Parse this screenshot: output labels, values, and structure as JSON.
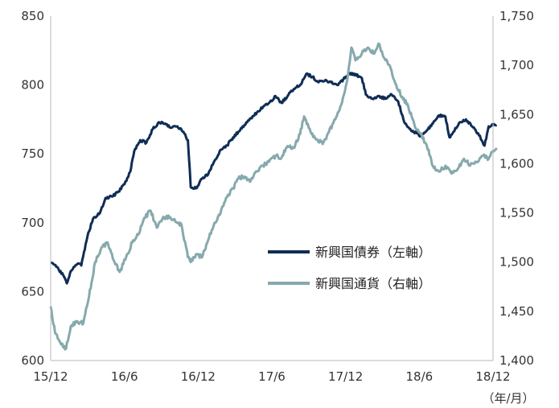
{
  "chart_data": {
    "type": "line",
    "x_ticks": [
      "15/12",
      "16/6",
      "16/12",
      "17/6",
      "17/12",
      "18/6",
      "18/12"
    ],
    "x_unit_label": "（年/月）",
    "y_left": {
      "range": [
        600,
        850
      ],
      "ticks": [
        "600",
        "650",
        "700",
        "750",
        "800",
        "850"
      ]
    },
    "y_right": {
      "range": [
        1400,
        1750
      ],
      "ticks": [
        "1,400",
        "1,450",
        "1,500",
        "1,550",
        "1,600",
        "1,650",
        "1,700",
        "1,750"
      ]
    },
    "grid": false,
    "legend_position": "center-right",
    "series": [
      {
        "name": "新興国債券（左軸）",
        "axis": "left",
        "color": "#0f2d55",
        "points": [
          [
            "2015-12-01",
            671
          ],
          [
            "2015-12-15",
            668
          ],
          [
            "2016-01-01",
            662
          ],
          [
            "2016-01-10",
            656
          ],
          [
            "2016-01-20",
            665
          ],
          [
            "2016-02-05",
            670
          ],
          [
            "2016-02-15",
            669
          ],
          [
            "2016-03-01",
            690
          ],
          [
            "2016-03-15",
            703
          ],
          [
            "2016-04-01",
            707
          ],
          [
            "2016-04-15",
            718
          ],
          [
            "2016-05-01",
            719
          ],
          [
            "2016-05-15",
            722
          ],
          [
            "2016-06-01",
            728
          ],
          [
            "2016-06-15",
            737
          ],
          [
            "2016-06-25",
            752
          ],
          [
            "2016-07-10",
            760
          ],
          [
            "2016-07-25",
            758
          ],
          [
            "2016-08-10",
            768
          ],
          [
            "2016-08-25",
            773
          ],
          [
            "2016-09-10",
            772
          ],
          [
            "2016-09-25",
            769
          ],
          [
            "2016-10-10",
            770
          ],
          [
            "2016-10-25",
            766
          ],
          [
            "2016-11-05",
            760
          ],
          [
            "2016-11-12",
            726
          ],
          [
            "2016-11-25",
            725
          ],
          [
            "2016-12-10",
            732
          ],
          [
            "2016-12-25",
            735
          ],
          [
            "2017-01-10",
            745
          ],
          [
            "2017-01-25",
            753
          ],
          [
            "2017-02-10",
            756
          ],
          [
            "2017-02-25",
            762
          ],
          [
            "2017-03-10",
            766
          ],
          [
            "2017-03-25",
            771
          ],
          [
            "2017-04-10",
            776
          ],
          [
            "2017-04-25",
            780
          ],
          [
            "2017-05-10",
            784
          ],
          [
            "2017-05-25",
            787
          ],
          [
            "2017-06-10",
            792
          ],
          [
            "2017-06-25",
            787
          ],
          [
            "2017-07-10",
            792
          ],
          [
            "2017-07-25",
            797
          ],
          [
            "2017-08-10",
            800
          ],
          [
            "2017-08-25",
            808
          ],
          [
            "2017-09-10",
            806
          ],
          [
            "2017-09-25",
            802
          ],
          [
            "2017-10-10",
            803
          ],
          [
            "2017-10-25",
            802
          ],
          [
            "2017-11-10",
            800
          ],
          [
            "2017-11-25",
            804
          ],
          [
            "2017-12-10",
            808
          ],
          [
            "2017-12-25",
            808
          ],
          [
            "2018-01-10",
            805
          ],
          [
            "2018-01-20",
            793
          ],
          [
            "2018-02-05",
            790
          ],
          [
            "2018-02-20",
            792
          ],
          [
            "2018-03-10",
            790
          ],
          [
            "2018-03-25",
            793
          ],
          [
            "2018-04-10",
            788
          ],
          [
            "2018-04-25",
            773
          ],
          [
            "2018-05-10",
            768
          ],
          [
            "2018-05-25",
            765
          ],
          [
            "2018-06-05",
            763
          ],
          [
            "2018-06-20",
            767
          ],
          [
            "2018-07-05",
            772
          ],
          [
            "2018-07-20",
            778
          ],
          [
            "2018-08-05",
            777
          ],
          [
            "2018-08-15",
            762
          ],
          [
            "2018-08-25",
            766
          ],
          [
            "2018-09-10",
            773
          ],
          [
            "2018-09-25",
            775
          ],
          [
            "2018-10-10",
            770
          ],
          [
            "2018-10-25",
            765
          ],
          [
            "2018-11-10",
            756
          ],
          [
            "2018-11-20",
            770
          ],
          [
            "2018-12-01",
            771
          ],
          [
            "2018-12-10",
            771
          ]
        ]
      },
      {
        "name": "新興国通貨（右軸）",
        "axis": "right",
        "color": "#86a9ad",
        "points": [
          [
            "2015-12-01",
            1455
          ],
          [
            "2015-12-12",
            1428
          ],
          [
            "2015-12-25",
            1418
          ],
          [
            "2016-01-08",
            1412
          ],
          [
            "2016-01-20",
            1435
          ],
          [
            "2016-02-05",
            1440
          ],
          [
            "2016-02-20",
            1438
          ],
          [
            "2016-03-05",
            1465
          ],
          [
            "2016-03-20",
            1500
          ],
          [
            "2016-04-05",
            1515
          ],
          [
            "2016-04-20",
            1520
          ],
          [
            "2016-05-05",
            1502
          ],
          [
            "2016-05-20",
            1490
          ],
          [
            "2016-06-05",
            1505
          ],
          [
            "2016-06-20",
            1520
          ],
          [
            "2016-07-05",
            1528
          ],
          [
            "2016-07-20",
            1545
          ],
          [
            "2016-08-05",
            1552
          ],
          [
            "2016-08-20",
            1535
          ],
          [
            "2016-09-05",
            1546
          ],
          [
            "2016-09-20",
            1545
          ],
          [
            "2016-10-05",
            1541
          ],
          [
            "2016-10-20",
            1538
          ],
          [
            "2016-11-05",
            1505
          ],
          [
            "2016-11-12",
            1500
          ],
          [
            "2016-11-25",
            1508
          ],
          [
            "2016-12-10",
            1505
          ],
          [
            "2016-12-25",
            1522
          ],
          [
            "2017-01-10",
            1540
          ],
          [
            "2017-01-25",
            1550
          ],
          [
            "2017-02-10",
            1566
          ],
          [
            "2017-02-25",
            1575
          ],
          [
            "2017-03-10",
            1585
          ],
          [
            "2017-03-25",
            1587
          ],
          [
            "2017-04-10",
            1583
          ],
          [
            "2017-04-25",
            1592
          ],
          [
            "2017-05-10",
            1598
          ],
          [
            "2017-05-25",
            1602
          ],
          [
            "2017-06-10",
            1608
          ],
          [
            "2017-06-25",
            1606
          ],
          [
            "2017-07-10",
            1618
          ],
          [
            "2017-07-25",
            1616
          ],
          [
            "2017-08-10",
            1630
          ],
          [
            "2017-08-20",
            1648
          ],
          [
            "2017-09-05",
            1632
          ],
          [
            "2017-09-20",
            1625
          ],
          [
            "2017-10-05",
            1620
          ],
          [
            "2017-10-20",
            1632
          ],
          [
            "2017-11-05",
            1645
          ],
          [
            "2017-11-20",
            1660
          ],
          [
            "2017-12-05",
            1685
          ],
          [
            "2017-12-15",
            1718
          ],
          [
            "2017-12-25",
            1705
          ],
          [
            "2018-01-10",
            1712
          ],
          [
            "2018-01-25",
            1718
          ],
          [
            "2018-02-10",
            1712
          ],
          [
            "2018-02-20",
            1722
          ],
          [
            "2018-03-05",
            1708
          ],
          [
            "2018-03-20",
            1700
          ],
          [
            "2018-04-05",
            1680
          ],
          [
            "2018-04-20",
            1668
          ],
          [
            "2018-05-05",
            1658
          ],
          [
            "2018-05-20",
            1640
          ],
          [
            "2018-06-05",
            1630
          ],
          [
            "2018-06-20",
            1618
          ],
          [
            "2018-07-05",
            1598
          ],
          [
            "2018-07-20",
            1592
          ],
          [
            "2018-08-05",
            1598
          ],
          [
            "2018-08-20",
            1590
          ],
          [
            "2018-09-05",
            1595
          ],
          [
            "2018-09-20",
            1605
          ],
          [
            "2018-10-05",
            1598
          ],
          [
            "2018-10-20",
            1602
          ],
          [
            "2018-11-05",
            1608
          ],
          [
            "2018-11-20",
            1605
          ],
          [
            "2018-12-01",
            1613
          ],
          [
            "2018-12-10",
            1616
          ]
        ]
      }
    ]
  }
}
